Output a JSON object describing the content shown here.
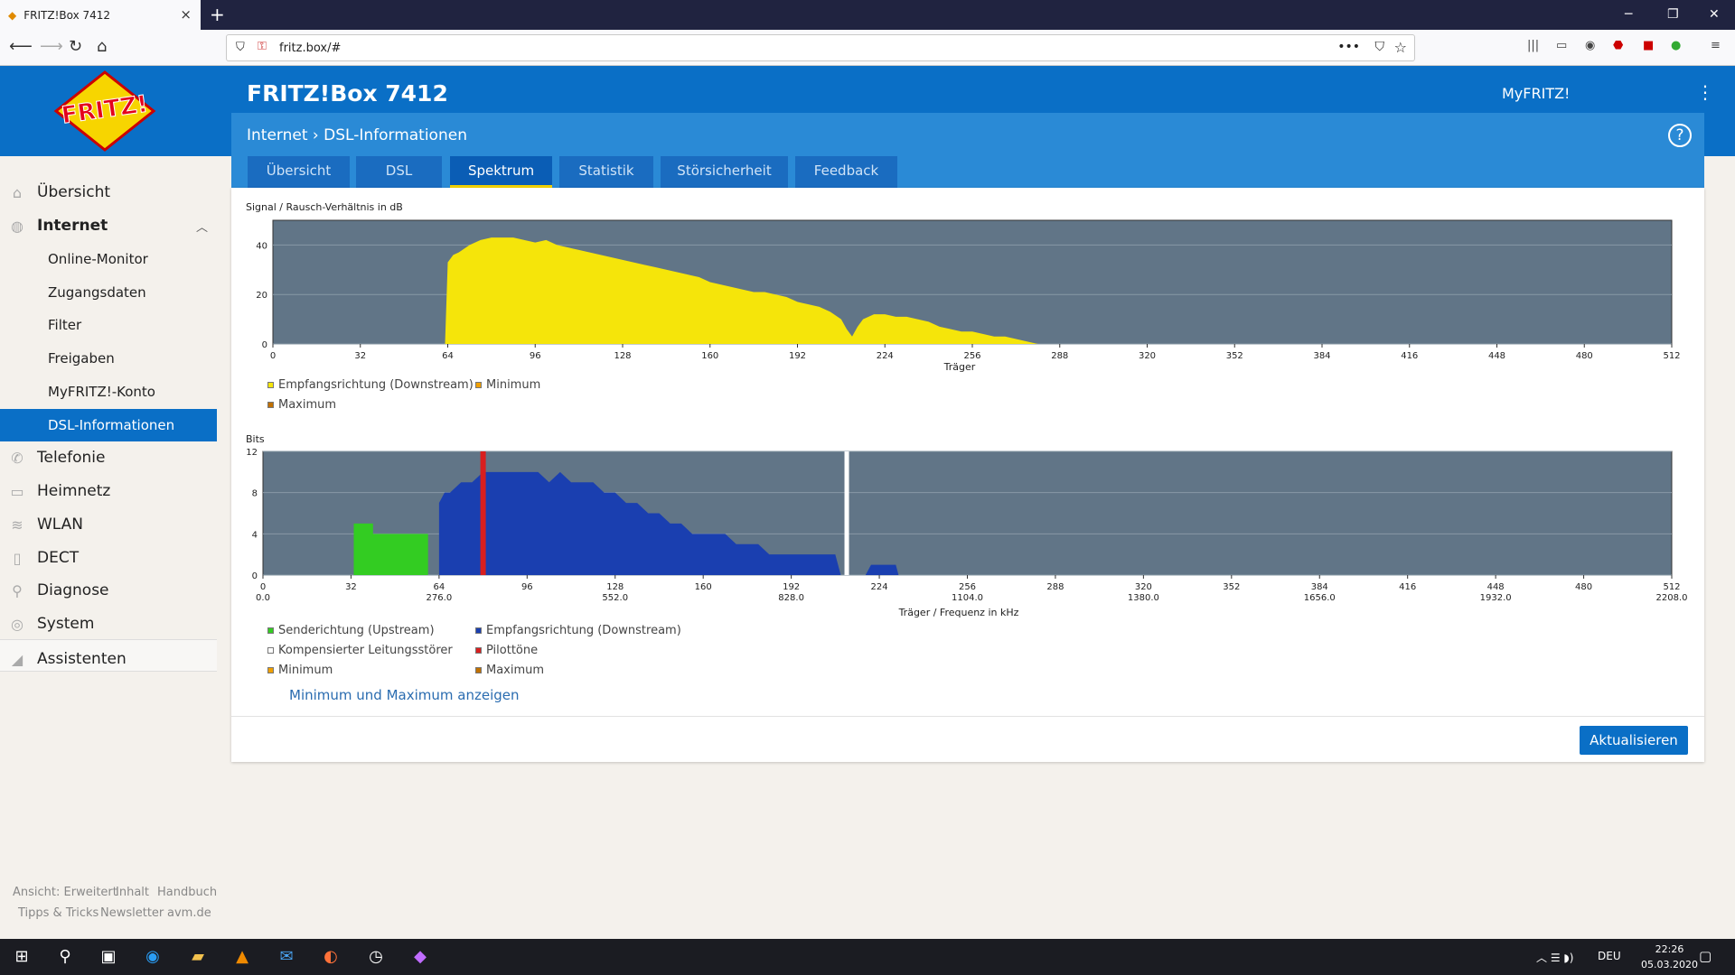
{
  "browser": {
    "tab_title": "FRITZ!Box 7412",
    "url": "fritz.box/#"
  },
  "header": {
    "title": "FRITZ!Box 7412",
    "myfritz": "MyFRITZ!",
    "breadcrumb_parent": "Internet",
    "breadcrumb_sep": ">",
    "breadcrumb_current": "DSL-Informationen",
    "help": "?"
  },
  "tabs": [
    "Übersicht",
    "DSL",
    "Spektrum",
    "Statistik",
    "Störsicherheit",
    "Feedback"
  ],
  "sidebar": {
    "items": [
      {
        "label": "Übersicht",
        "icon": "home-icon"
      },
      {
        "label": "Internet",
        "icon": "globe-icon"
      },
      {
        "label": "Telefonie",
        "icon": "phone-icon"
      },
      {
        "label": "Heimnetz",
        "icon": "network-icon"
      },
      {
        "label": "WLAN",
        "icon": "wifi-icon"
      },
      {
        "label": "DECT",
        "icon": "dect-icon"
      },
      {
        "label": "Diagnose",
        "icon": "diagnose-icon"
      },
      {
        "label": "System",
        "icon": "system-icon"
      },
      {
        "label": "Assistenten",
        "icon": "wizard-icon"
      }
    ],
    "internet_sub": [
      "Online-Monitor",
      "Zugangsdaten",
      "Filter",
      "Freigaben",
      "MyFRITZ!-Konto",
      "DSL-Informationen"
    ]
  },
  "chart1": {
    "title": "Signal / Rausch-Verhältnis in dB",
    "xlabel": "Träger",
    "legend": [
      "Empfangsrichtung (Downstream)",
      "Minimum",
      "Maximum"
    ]
  },
  "chart2": {
    "title": "Bits",
    "xlabel": "Träger / Frequenz in kHz",
    "freq_ticks": [
      "0.0",
      "276.0",
      "552.0",
      "828.0",
      "1104.0",
      "1380.0",
      "1656.0",
      "1932.0",
      "2208.0"
    ],
    "legend": [
      "Senderichtung (Upstream)",
      "Empfangsrichtung (Downstream)",
      "Kompensierter Leitungsstörer",
      "Pilottöne",
      "Minimum",
      "Maximum"
    ]
  },
  "chart_data": [
    {
      "type": "area",
      "title": "Signal / Rausch-Verhältnis in dB",
      "xlabel": "Träger",
      "ylabel": "",
      "xlim": [
        0,
        512
      ],
      "ylim": [
        0,
        50
      ],
      "xticks": [
        0,
        32,
        64,
        96,
        128,
        160,
        192,
        224,
        256,
        288,
        320,
        352,
        384,
        416,
        448,
        480,
        512
      ],
      "yticks": [
        0,
        20,
        40
      ],
      "series": [
        {
          "name": "Empfangsrichtung (Downstream)",
          "color": "#f5e50a",
          "x": [
            63,
            64,
            66,
            68,
            72,
            76,
            80,
            84,
            88,
            92,
            96,
            100,
            104,
            108,
            112,
            116,
            120,
            124,
            128,
            132,
            136,
            140,
            144,
            148,
            152,
            156,
            160,
            164,
            168,
            172,
            176,
            180,
            184,
            188,
            192,
            196,
            200,
            204,
            208,
            210,
            212,
            214,
            216,
            218,
            220,
            224,
            228,
            232,
            236,
            240,
            244,
            248,
            252,
            256,
            260,
            264,
            268,
            272,
            276,
            280
          ],
          "y": [
            0,
            33,
            36,
            37,
            40,
            42,
            43,
            43,
            43,
            42,
            41,
            42,
            40,
            39,
            38,
            37,
            36,
            35,
            34,
            33,
            32,
            31,
            30,
            29,
            28,
            27,
            25,
            24,
            23,
            22,
            21,
            21,
            20,
            19,
            17,
            16,
            15,
            13,
            10,
            6,
            3,
            7,
            10,
            11,
            12,
            12,
            11,
            11,
            10,
            9,
            7,
            6,
            5,
            5,
            4,
            3,
            3,
            2,
            1,
            0
          ]
        }
      ]
    },
    {
      "type": "area",
      "title": "Bits",
      "xlabel": "Träger / Frequenz in kHz",
      "ylabel": "",
      "xlim": [
        0,
        512
      ],
      "ylim": [
        0,
        12
      ],
      "xticks": [
        0,
        32,
        64,
        96,
        128,
        160,
        192,
        224,
        256,
        288,
        320,
        352,
        384,
        416,
        448,
        480,
        512
      ],
      "yticks": [
        0,
        4,
        8,
        12
      ],
      "freq_ticks": [
        "0.0",
        "276.0",
        "552.0",
        "828.0",
        "1104.0",
        "1380.0",
        "1656.0",
        "1932.0",
        "2208.0"
      ],
      "series": [
        {
          "name": "Senderichtung (Upstream)",
          "color": "#33cc22",
          "x": [
            33,
            33,
            40,
            40,
            60,
            60
          ],
          "y": [
            0,
            5,
            5,
            4,
            4,
            0
          ]
        },
        {
          "name": "Empfangsrichtung (Downstream)",
          "color": "#1a3fb0",
          "x": [
            64,
            64,
            66,
            68,
            72,
            76,
            80,
            84,
            90,
            96,
            100,
            104,
            108,
            112,
            116,
            120,
            124,
            128,
            132,
            136,
            140,
            144,
            148,
            152,
            156,
            160,
            164,
            168,
            172,
            176,
            180,
            184,
            188,
            192,
            196,
            200,
            204,
            208,
            210,
            215,
            219,
            221,
            225,
            230,
            231
          ],
          "y": [
            0,
            7,
            8,
            8,
            9,
            9,
            10,
            10,
            10,
            10,
            10,
            9,
            10,
            9,
            9,
            9,
            8,
            8,
            7,
            7,
            6,
            6,
            5,
            5,
            4,
            4,
            4,
            4,
            3,
            3,
            3,
            2,
            2,
            2,
            2,
            2,
            2,
            2,
            0,
            0,
            0,
            1,
            1,
            1,
            0
          ]
        },
        {
          "name": "Kompensierter Leitungsstörer",
          "color": "#ffffff",
          "x": [
            212
          ],
          "y": [
            12
          ]
        },
        {
          "name": "Pilottöne",
          "color": "#d81f1f",
          "x": [
            80
          ],
          "y": [
            12
          ]
        }
      ]
    }
  ]
}
